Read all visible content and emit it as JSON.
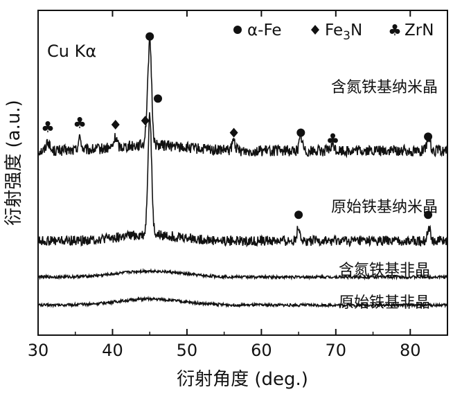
{
  "chart_data": {
    "type": "line",
    "title": "",
    "xlabel": "衍射角度 (deg.)",
    "ylabel": "衍射强度 (a.u.)",
    "xlim": [
      30,
      85
    ],
    "x_ticks": [
      30,
      40,
      50,
      60,
      70,
      80
    ],
    "y_ticks_shown": false,
    "annotation": "Cu Kα",
    "legend": {
      "placement": "top-right",
      "entries": [
        {
          "marker": "circle",
          "label": "α-Fe"
        },
        {
          "marker": "diamond",
          "label": "Fe3N"
        },
        {
          "marker": "club",
          "label": "ZrN"
        }
      ]
    },
    "series": [
      {
        "name": "含氮铁基纳米晶",
        "baseline": 0.72,
        "noise": 0.055,
        "hump": {
          "center": 45,
          "width": 6,
          "height": 0.03
        },
        "peaks": [
          {
            "x": 31.3,
            "h": 0.05,
            "w": 0.3
          },
          {
            "x": 35.6,
            "h": 0.06,
            "w": 0.3
          },
          {
            "x": 40.4,
            "h": 0.05,
            "w": 0.3
          },
          {
            "x": 44.5,
            "h": 0.05,
            "w": 0.25
          },
          {
            "x": 45.0,
            "h": 0.52,
            "w": 0.35
          },
          {
            "x": 56.3,
            "h": 0.05,
            "w": 0.3
          },
          {
            "x": 65.3,
            "h": 0.07,
            "w": 0.3
          },
          {
            "x": 69.6,
            "h": 0.03,
            "w": 0.3
          },
          {
            "x": 82.5,
            "h": 0.07,
            "w": 0.3
          }
        ],
        "markers": [
          {
            "x": 31.3,
            "symbol": "club",
            "y": 0.84
          },
          {
            "x": 35.6,
            "symbol": "club",
            "y": 0.86
          },
          {
            "x": 40.4,
            "symbol": "diamond",
            "y": 0.85
          },
          {
            "x": 44.4,
            "symbol": "diamond",
            "y": 0.87
          },
          {
            "x": 45.0,
            "symbol": "circle",
            "y": 1.29
          },
          {
            "x": 56.3,
            "symbol": "diamond",
            "y": 0.81
          },
          {
            "x": 65.3,
            "symbol": "circle",
            "y": 0.81
          },
          {
            "x": 69.6,
            "symbol": "club",
            "y": 0.78
          },
          {
            "x": 82.4,
            "symbol": "circle",
            "y": 0.79
          }
        ]
      },
      {
        "name": "原始铁基纳米晶",
        "baseline": 0.27,
        "noise": 0.05,
        "hump": {
          "center": 45,
          "width": 6,
          "height": 0.03
        },
        "peaks": [
          {
            "x": 45.0,
            "h": 0.6,
            "w": 0.35
          },
          {
            "x": 65.0,
            "h": 0.07,
            "w": 0.3
          },
          {
            "x": 82.5,
            "h": 0.07,
            "w": 0.3
          }
        ],
        "markers": [
          {
            "x": 46.1,
            "symbol": "circle",
            "y": 0.98
          },
          {
            "x": 65.0,
            "symbol": "circle",
            "y": 0.4
          },
          {
            "x": 82.4,
            "symbol": "circle",
            "y": 0.4
          }
        ]
      },
      {
        "name": "含氮铁基非晶",
        "baseline": 0.09,
        "noise": 0.014,
        "hump": {
          "center": 45,
          "width": 6,
          "height": 0.03
        },
        "peaks": [],
        "markers": []
      },
      {
        "name": "原始铁基非晶",
        "baseline": -0.05,
        "noise": 0.014,
        "hump": {
          "center": 45,
          "width": 6,
          "height": 0.03
        },
        "peaks": [],
        "markers": []
      }
    ]
  }
}
